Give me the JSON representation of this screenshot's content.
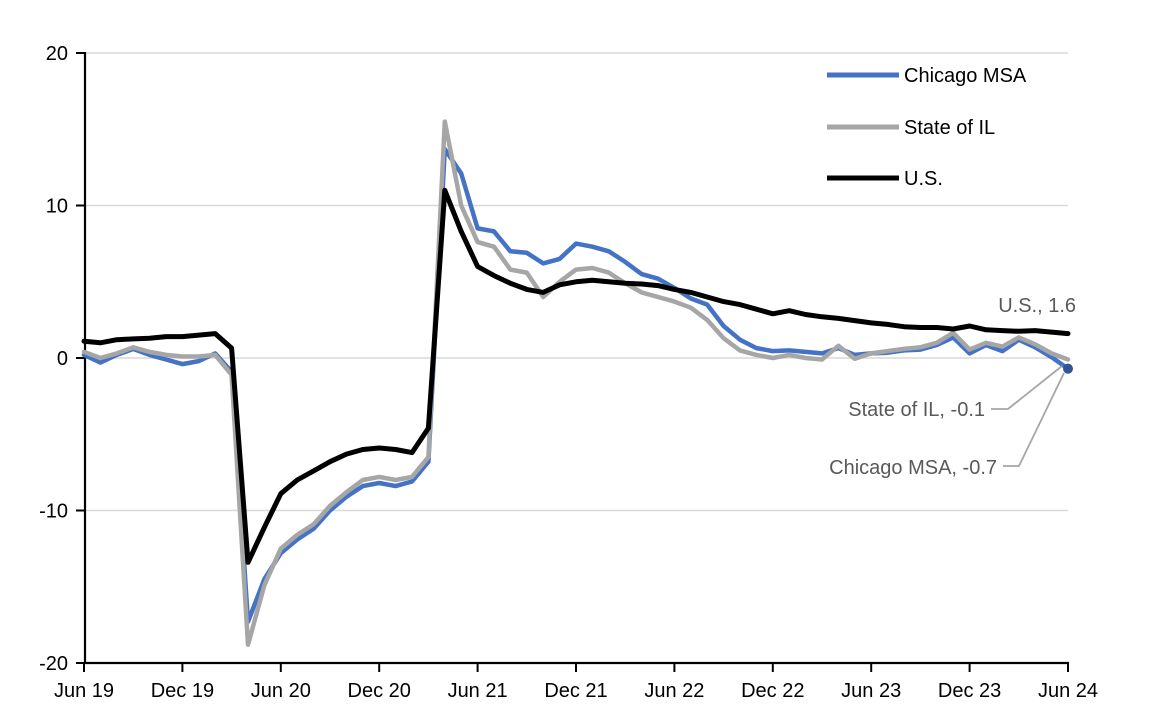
{
  "chart_data": {
    "type": "line",
    "title": "",
    "xlabel": "",
    "ylabel": "",
    "frequency": "monthly",
    "x_start": "Jun 2019",
    "x_end": "Jun 2024",
    "ylim": [
      -20,
      20
    ],
    "grid": "horizontal",
    "legend_position": "top-right-inside",
    "x_tick_labels": [
      "Jun 19",
      "Dec 19",
      "Jun 20",
      "Dec 20",
      "Jun 21",
      "Dec 21",
      "Jun 22",
      "Dec 22",
      "Jun 23",
      "Dec 23",
      "Jun 24"
    ],
    "y_ticks": [
      20,
      10,
      0,
      -10,
      -20
    ],
    "y_tick_labels": [
      "20",
      "10",
      "0",
      "-10",
      "-20"
    ],
    "series": [
      {
        "id": "chicago-msa",
        "name": "Chicago MSA",
        "color": "#4472C4",
        "values": [
          0.2,
          -0.3,
          0.2,
          0.6,
          0.2,
          -0.1,
          -0.4,
          -0.2,
          0.3,
          -0.9,
          -17.3,
          -14.5,
          -12.8,
          -11.9,
          -11.2,
          -10.0,
          -9.1,
          -8.4,
          -8.2,
          -8.4,
          -8.1,
          -6.8,
          13.7,
          12.1,
          8.5,
          8.3,
          7.0,
          6.9,
          6.2,
          6.5,
          7.5,
          7.3,
          7.0,
          6.3,
          5.5,
          5.2,
          4.6,
          3.9,
          3.5,
          2.1,
          1.2,
          0.65,
          0.45,
          0.5,
          0.4,
          0.3,
          0.65,
          0.2,
          0.3,
          0.35,
          0.5,
          0.55,
          0.85,
          1.35,
          0.3,
          0.85,
          0.45,
          1.2,
          0.7,
          0.05,
          -0.7
        ]
      },
      {
        "id": "state-of-il",
        "name": "State of IL",
        "color": "#A6A6A6",
        "values": [
          0.4,
          0.0,
          0.3,
          0.7,
          0.4,
          0.2,
          0.1,
          0.1,
          0.2,
          -1.1,
          -18.8,
          -14.9,
          -12.5,
          -11.6,
          -10.9,
          -9.7,
          -8.8,
          -8.0,
          -7.8,
          -8.0,
          -7.8,
          -6.5,
          15.5,
          10.0,
          7.6,
          7.3,
          5.8,
          5.6,
          4.0,
          5.0,
          5.8,
          5.9,
          5.6,
          4.9,
          4.3,
          4.0,
          3.7,
          3.3,
          2.5,
          1.3,
          0.5,
          0.2,
          0.0,
          0.2,
          0.0,
          -0.1,
          0.8,
          -0.05,
          0.3,
          0.45,
          0.6,
          0.7,
          1.0,
          1.65,
          0.55,
          1.0,
          0.75,
          1.35,
          0.9,
          0.3,
          -0.1
        ]
      },
      {
        "id": "us",
        "name": "U.S.",
        "color": "#000000",
        "values": [
          1.1,
          1.0,
          1.2,
          1.25,
          1.3,
          1.4,
          1.4,
          1.5,
          1.6,
          0.65,
          -13.4,
          -11.1,
          -8.9,
          -8.0,
          -7.4,
          -6.8,
          -6.3,
          -6.0,
          -5.9,
          -6.0,
          -6.2,
          -4.6,
          11.0,
          8.3,
          6.0,
          5.4,
          4.9,
          4.5,
          4.3,
          4.8,
          5.0,
          5.1,
          5.0,
          4.9,
          4.85,
          4.75,
          4.5,
          4.3,
          4.0,
          3.7,
          3.5,
          3.2,
          2.9,
          3.1,
          2.85,
          2.7,
          2.6,
          2.45,
          2.3,
          2.2,
          2.05,
          2.0,
          2.0,
          1.9,
          2.1,
          1.85,
          1.8,
          1.75,
          1.8,
          1.7,
          1.6
        ]
      }
    ],
    "end_values": {
      "chicago_msa": -0.7,
      "state_of_il": -0.1,
      "us": 1.6
    },
    "annotations": {
      "us": {
        "text": "U.S., 1.6"
      },
      "il": {
        "text": "State of IL, -0.1"
      },
      "chicago": {
        "text": "Chicago MSA, -0.7"
      }
    },
    "colors": {
      "gridline": "#D9D9D9",
      "axis": "#000000",
      "annotation_text": "#595959",
      "leader_line": "#A6A6A6",
      "endpoint_dot": "#2F5597"
    }
  }
}
